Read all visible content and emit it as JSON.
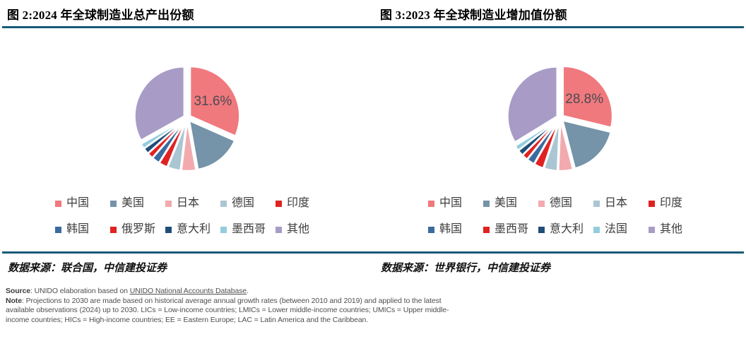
{
  "accent": {
    "divider_color": "#175A78",
    "percent_label_color": "#4a4a52"
  },
  "chart_data": [
    {
      "type": "pie",
      "title": "图 2:2024 年全球制造业总产出份额",
      "source": "数据来源：联合国，中信建投证券",
      "data_label": "31.6%",
      "legend_position": "bottom",
      "labels": [
        "中国",
        "美国",
        "日本",
        "德国",
        "印度",
        "韩国",
        "俄罗斯",
        "意大利",
        "墨西哥",
        "其他"
      ],
      "keys": [
        "china",
        "usa",
        "japan",
        "germany",
        "india",
        "korea",
        "russia",
        "italy",
        "mexico",
        "others"
      ],
      "values": [
        31.6,
        15.6,
        4.7,
        4.2,
        2.8,
        2.5,
        1.9,
        1.9,
        1.7,
        33.1
      ],
      "colors": [
        "#F0797D",
        "#7593A9",
        "#F3AAAE",
        "#ABC6D3",
        "#E02222",
        "#3A6B9F",
        "#E02222",
        "#1F4E79",
        "#93CDDD",
        "#A89CC6"
      ]
    },
    {
      "type": "pie",
      "title": "图 3:2023 年全球制造业增加值份额",
      "source": "数据来源：世界银行，中信建投证券",
      "data_label": "28.8%",
      "legend_position": "bottom",
      "labels": [
        "中国",
        "美国",
        "德国",
        "日本",
        "印度",
        "韩国",
        "墨西哥",
        "意大利",
        "法国",
        "其他"
      ],
      "keys": [
        "china",
        "usa",
        "germany",
        "japan",
        "india",
        "korea",
        "mexico",
        "italy",
        "france",
        "others"
      ],
      "values": [
        28.8,
        17.2,
        4.7,
        4.4,
        3.1,
        2.5,
        1.9,
        1.9,
        1.7,
        33.8
      ],
      "colors": [
        "#F0797D",
        "#7593A9",
        "#F3AAAE",
        "#ABC6D3",
        "#E02222",
        "#3A6B9F",
        "#E02222",
        "#1F4E79",
        "#93CDDD",
        "#A89CC6"
      ]
    }
  ],
  "footer": {
    "source_label": "Source",
    "source_text_1": ": UNIDO elaboration based on ",
    "source_link": "UNIDO National Accounts Database",
    "source_text_2": ".",
    "note_label": "Note",
    "note_text": ": Projections to 2030 are made based on historical average annual growth rates (between 2010 and 2019) and applied to the latest available observations (2024) up to 2030. LICs = Low-income countries; LMICs = Lower middle-income countries; UMICs = Upper middle-income countries; HICs = High-income countries; EE = Eastern Europe; LAC = Latin America and the Caribbean."
  }
}
